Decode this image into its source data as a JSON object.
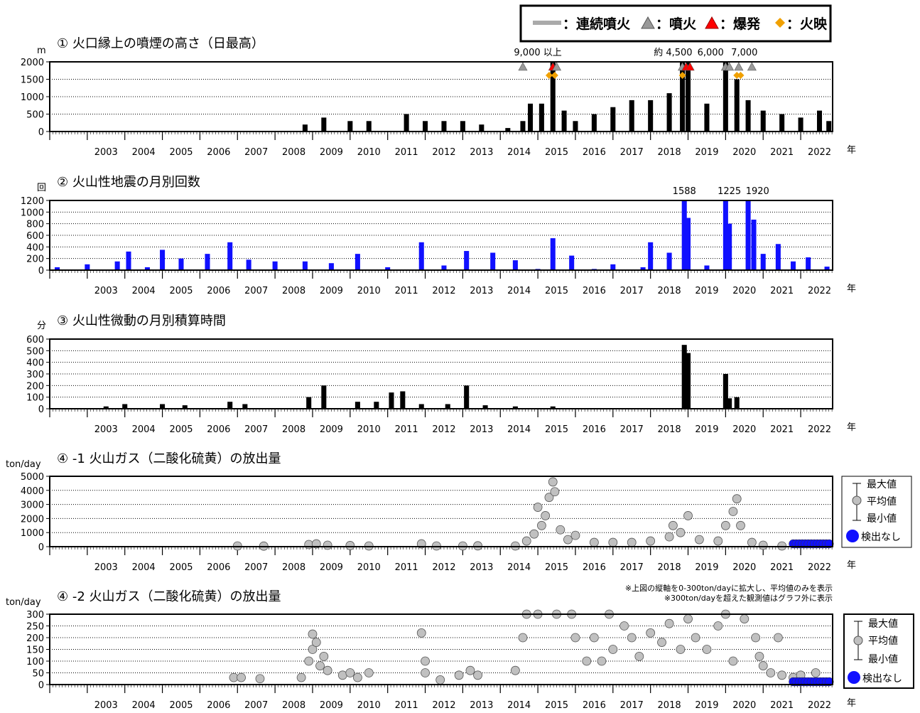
{
  "legend_top": {
    "continuous": "：連続噴火",
    "eruption": "：噴火",
    "explosion": "：爆発",
    "incandescence": "：火映",
    "colors": {
      "continuous": "#aaaaaa",
      "eruption": "#999999",
      "explosion": "#ff0000",
      "incandescence": "#f0a000"
    }
  },
  "year_suffix": "年",
  "side_legend": {
    "max": "最大値",
    "mean": "平均値",
    "min": "最小値",
    "none": "検出なし"
  },
  "note1": "※上図の縦軸を0-300ton/dayに拡大し、平均値のみを表示",
  "note2": "※300ton/dayを超えた観測値はグラフ外に表示",
  "chart_data": [
    {
      "id": "plume",
      "type": "bar",
      "title": "① 火口縁上の噴煙の高さ（日最高）",
      "unit": "m",
      "ylim": [
        0,
        2000
      ],
      "yticks": [
        "2000",
        "1500",
        "1000",
        "500",
        "0"
      ],
      "xticks": [
        "2003",
        "2004",
        "2005",
        "2006",
        "2007",
        "2008",
        "2009",
        "2010",
        "2011",
        "2012",
        "2013",
        "2014",
        "2015",
        "2016",
        "2017",
        "2018",
        "2019",
        "2020",
        "2021",
        "2022"
      ],
      "annotations": [
        "9,000 以上",
        "約 4,500",
        "6,000",
        "7,000"
      ],
      "color": "#000000",
      "series": [
        {
          "x": 2008.8,
          "y": 200
        },
        {
          "x": 2009.3,
          "y": 400
        },
        {
          "x": 2010.0,
          "y": 300
        },
        {
          "x": 2010.5,
          "y": 300
        },
        {
          "x": 2011.5,
          "y": 500
        },
        {
          "x": 2012.0,
          "y": 300
        },
        {
          "x": 2012.5,
          "y": 300
        },
        {
          "x": 2013.0,
          "y": 300
        },
        {
          "x": 2013.5,
          "y": 200
        },
        {
          "x": 2014.2,
          "y": 100
        },
        {
          "x": 2014.6,
          "y": 300
        },
        {
          "x": 2014.8,
          "y": 800
        },
        {
          "x": 2015.1,
          "y": 800
        },
        {
          "x": 2015.4,
          "y": 2000
        },
        {
          "x": 2015.7,
          "y": 600
        },
        {
          "x": 2016.0,
          "y": 300
        },
        {
          "x": 2016.5,
          "y": 500
        },
        {
          "x": 2017.0,
          "y": 700
        },
        {
          "x": 2017.5,
          "y": 900
        },
        {
          "x": 2018.0,
          "y": 900
        },
        {
          "x": 2018.5,
          "y": 1100
        },
        {
          "x": 2018.85,
          "y": 2000
        },
        {
          "x": 2019.0,
          "y": 2000
        },
        {
          "x": 2019.5,
          "y": 800
        },
        {
          "x": 2020.0,
          "y": 2000
        },
        {
          "x": 2020.3,
          "y": 1500
        },
        {
          "x": 2020.6,
          "y": 900
        },
        {
          "x": 2021.0,
          "y": 600
        },
        {
          "x": 2021.5,
          "y": 500
        },
        {
          "x": 2022.0,
          "y": 400
        },
        {
          "x": 2022.5,
          "y": 600
        },
        {
          "x": 2022.75,
          "y": 300
        }
      ]
    },
    {
      "id": "quake",
      "type": "bar",
      "title": "② 火山性地震の月別回数",
      "unit": "回",
      "ylim": [
        0,
        1200
      ],
      "yticks": [
        "1200",
        "1000",
        "800",
        "600",
        "400",
        "200",
        "0"
      ],
      "xticks": [
        "2003",
        "2004",
        "2005",
        "2006",
        "2007",
        "2008",
        "2009",
        "2010",
        "2011",
        "2012",
        "2013",
        "2014",
        "2015",
        "2016",
        "2017",
        "2018",
        "2019",
        "2020",
        "2021",
        "2022"
      ],
      "annotations": [
        "1588",
        "1225",
        "1920"
      ],
      "color": "#1010ff",
      "series": [
        {
          "x": 2002.2,
          "y": 50
        },
        {
          "x": 2003.0,
          "y": 100
        },
        {
          "x": 2003.8,
          "y": 150
        },
        {
          "x": 2004.1,
          "y": 320
        },
        {
          "x": 2004.6,
          "y": 50
        },
        {
          "x": 2005.0,
          "y": 350
        },
        {
          "x": 2005.5,
          "y": 200
        },
        {
          "x": 2006.2,
          "y": 280
        },
        {
          "x": 2006.8,
          "y": 480
        },
        {
          "x": 2007.3,
          "y": 180
        },
        {
          "x": 2008.0,
          "y": 150
        },
        {
          "x": 2008.8,
          "y": 150
        },
        {
          "x": 2009.5,
          "y": 120
        },
        {
          "x": 2010.2,
          "y": 280
        },
        {
          "x": 2011.0,
          "y": 50
        },
        {
          "x": 2011.9,
          "y": 480
        },
        {
          "x": 2012.5,
          "y": 80
        },
        {
          "x": 2013.1,
          "y": 330
        },
        {
          "x": 2013.8,
          "y": 300
        },
        {
          "x": 2014.4,
          "y": 170
        },
        {
          "x": 2015.0,
          "y": 20
        },
        {
          "x": 2015.4,
          "y": 550
        },
        {
          "x": 2015.9,
          "y": 250
        },
        {
          "x": 2016.5,
          "y": 20
        },
        {
          "x": 2017.0,
          "y": 100
        },
        {
          "x": 2017.8,
          "y": 50
        },
        {
          "x": 2018.0,
          "y": 480
        },
        {
          "x": 2018.5,
          "y": 300
        },
        {
          "x": 2018.9,
          "y": 1200
        },
        {
          "x": 2019.0,
          "y": 900
        },
        {
          "x": 2019.5,
          "y": 80
        },
        {
          "x": 2020.0,
          "y": 1200
        },
        {
          "x": 2020.1,
          "y": 800
        },
        {
          "x": 2020.6,
          "y": 1200
        },
        {
          "x": 2020.75,
          "y": 870
        },
        {
          "x": 2021.0,
          "y": 280
        },
        {
          "x": 2021.4,
          "y": 450
        },
        {
          "x": 2021.8,
          "y": 150
        },
        {
          "x": 2022.2,
          "y": 220
        },
        {
          "x": 2022.7,
          "y": 60
        }
      ]
    },
    {
      "id": "tremor",
      "type": "bar",
      "title": "③ 火山性微動の月別積算時間",
      "unit": "分",
      "ylim": [
        0,
        600
      ],
      "yticks": [
        "600",
        "500",
        "400",
        "300",
        "200",
        "100",
        "0"
      ],
      "xticks": [
        "2003",
        "2004",
        "2005",
        "2006",
        "2007",
        "2008",
        "2009",
        "2010",
        "2011",
        "2012",
        "2013",
        "2014",
        "2015",
        "2016",
        "2017",
        "2018",
        "2019",
        "2020",
        "2021",
        "2022"
      ],
      "color": "#000000",
      "series": [
        {
          "x": 2003.5,
          "y": 20
        },
        {
          "x": 2004.0,
          "y": 40
        },
        {
          "x": 2005.0,
          "y": 40
        },
        {
          "x": 2005.6,
          "y": 30
        },
        {
          "x": 2006.8,
          "y": 60
        },
        {
          "x": 2007.2,
          "y": 40
        },
        {
          "x": 2008.9,
          "y": 100
        },
        {
          "x": 2009.3,
          "y": 200
        },
        {
          "x": 2010.2,
          "y": 60
        },
        {
          "x": 2010.7,
          "y": 60
        },
        {
          "x": 2011.1,
          "y": 140
        },
        {
          "x": 2011.4,
          "y": 150
        },
        {
          "x": 2011.9,
          "y": 40
        },
        {
          "x": 2012.6,
          "y": 40
        },
        {
          "x": 2013.1,
          "y": 200
        },
        {
          "x": 2013.6,
          "y": 30
        },
        {
          "x": 2014.4,
          "y": 20
        },
        {
          "x": 2015.4,
          "y": 20
        },
        {
          "x": 2018.9,
          "y": 550
        },
        {
          "x": 2019.0,
          "y": 480
        },
        {
          "x": 2020.0,
          "y": 300
        },
        {
          "x": 2020.1,
          "y": 90
        },
        {
          "x": 2020.3,
          "y": 100
        }
      ]
    },
    {
      "id": "gas1",
      "type": "scatter",
      "title": "④ -1 火山ガス（二酸化硫黄）の放出量",
      "unit": "ton/day",
      "ylim": [
        0,
        5000
      ],
      "yticks": [
        "5000",
        "4000",
        "3000",
        "2000",
        "1000",
        "0"
      ],
      "xticks": [
        "2003",
        "2004",
        "2005",
        "2006",
        "2007",
        "2008",
        "2009",
        "2010",
        "2011",
        "2012",
        "2013",
        "2014",
        "2015",
        "2016",
        "2017",
        "2018",
        "2019",
        "2020",
        "2021",
        "2022"
      ],
      "point_color": "#c0c0c0",
      "none_color": "#1010ff",
      "series": [
        {
          "x": 2007.0,
          "y": 50
        },
        {
          "x": 2007.7,
          "y": 40
        },
        {
          "x": 2008.9,
          "y": 150
        },
        {
          "x": 2009.1,
          "y": 200
        },
        {
          "x": 2009.4,
          "y": 100
        },
        {
          "x": 2010.0,
          "y": 80
        },
        {
          "x": 2010.5,
          "y": 50
        },
        {
          "x": 2011.9,
          "y": 200
        },
        {
          "x": 2012.3,
          "y": 50
        },
        {
          "x": 2013.0,
          "y": 50
        },
        {
          "x": 2013.4,
          "y": 60
        },
        {
          "x": 2014.4,
          "y": 50
        },
        {
          "x": 2014.7,
          "y": 400
        },
        {
          "x": 2014.9,
          "y": 900
        },
        {
          "x": 2015.0,
          "y": 2800
        },
        {
          "x": 2015.1,
          "y": 1500
        },
        {
          "x": 2015.2,
          "y": 2200
        },
        {
          "x": 2015.3,
          "y": 3500
        },
        {
          "x": 2015.4,
          "y": 4600
        },
        {
          "x": 2015.45,
          "y": 3900
        },
        {
          "x": 2015.6,
          "y": 1200
        },
        {
          "x": 2015.8,
          "y": 500
        },
        {
          "x": 2016.0,
          "y": 800
        },
        {
          "x": 2016.5,
          "y": 300
        },
        {
          "x": 2017.0,
          "y": 300
        },
        {
          "x": 2017.5,
          "y": 300
        },
        {
          "x": 2018.0,
          "y": 400
        },
        {
          "x": 2018.5,
          "y": 700
        },
        {
          "x": 2018.6,
          "y": 1500
        },
        {
          "x": 2018.8,
          "y": 1000
        },
        {
          "x": 2019.0,
          "y": 2200
        },
        {
          "x": 2019.3,
          "y": 500
        },
        {
          "x": 2019.8,
          "y": 400
        },
        {
          "x": 2020.0,
          "y": 1500
        },
        {
          "x": 2020.2,
          "y": 2500
        },
        {
          "x": 2020.3,
          "y": 3400
        },
        {
          "x": 2020.4,
          "y": 1500
        },
        {
          "x": 2020.7,
          "y": 300
        },
        {
          "x": 2021.0,
          "y": 100
        },
        {
          "x": 2021.5,
          "y": 50
        }
      ],
      "none_range": [
        2021.8,
        2022.8
      ]
    },
    {
      "id": "gas2",
      "type": "scatter",
      "title": "④ -2 火山ガス（二酸化硫黄）の放出量",
      "unit": "ton/day",
      "ylim": [
        0,
        300
      ],
      "yticks": [
        "300",
        "250",
        "200",
        "150",
        "100",
        "50",
        "0"
      ],
      "xticks": [
        "2003",
        "2004",
        "2005",
        "2006",
        "2007",
        "2008",
        "2009",
        "2010",
        "2011",
        "2012",
        "2013",
        "2014",
        "2015",
        "2016",
        "2017",
        "2018",
        "2019",
        "2020",
        "2021",
        "2022"
      ],
      "point_color": "#c0c0c0",
      "none_color": "#1010ff",
      "series": [
        {
          "x": 2006.9,
          "y": 30
        },
        {
          "x": 2007.1,
          "y": 30
        },
        {
          "x": 2007.6,
          "y": 25
        },
        {
          "x": 2008.7,
          "y": 30
        },
        {
          "x": 2008.9,
          "y": 100
        },
        {
          "x": 2009.0,
          "y": 150
        },
        {
          "x": 2009.0,
          "y": 215
        },
        {
          "x": 2009.1,
          "y": 180
        },
        {
          "x": 2009.2,
          "y": 80
        },
        {
          "x": 2009.3,
          "y": 120
        },
        {
          "x": 2009.4,
          "y": 60
        },
        {
          "x": 2009.8,
          "y": 40
        },
        {
          "x": 2010.0,
          "y": 50
        },
        {
          "x": 2010.2,
          "y": 30
        },
        {
          "x": 2010.5,
          "y": 50
        },
        {
          "x": 2011.9,
          "y": 220
        },
        {
          "x": 2012.0,
          "y": 100
        },
        {
          "x": 2012.0,
          "y": 50
        },
        {
          "x": 2012.4,
          "y": 20
        },
        {
          "x": 2012.9,
          "y": 40
        },
        {
          "x": 2013.2,
          "y": 60
        },
        {
          "x": 2013.4,
          "y": 40
        },
        {
          "x": 2014.4,
          "y": 60
        },
        {
          "x": 2014.6,
          "y": 200
        },
        {
          "x": 2014.7,
          "y": 300
        },
        {
          "x": 2015.0,
          "y": 300
        },
        {
          "x": 2015.5,
          "y": 300
        },
        {
          "x": 2015.9,
          "y": 300
        },
        {
          "x": 2016.0,
          "y": 200
        },
        {
          "x": 2016.3,
          "y": 100
        },
        {
          "x": 2016.5,
          "y": 200
        },
        {
          "x": 2016.7,
          "y": 100
        },
        {
          "x": 2016.9,
          "y": 300
        },
        {
          "x": 2017.0,
          "y": 150
        },
        {
          "x": 2017.3,
          "y": 250
        },
        {
          "x": 2017.5,
          "y": 200
        },
        {
          "x": 2017.7,
          "y": 120
        },
        {
          "x": 2018.0,
          "y": 220
        },
        {
          "x": 2018.3,
          "y": 180
        },
        {
          "x": 2018.5,
          "y": 260
        },
        {
          "x": 2018.8,
          "y": 150
        },
        {
          "x": 2019.0,
          "y": 280
        },
        {
          "x": 2019.2,
          "y": 200
        },
        {
          "x": 2019.5,
          "y": 150
        },
        {
          "x": 2019.8,
          "y": 250
        },
        {
          "x": 2020.0,
          "y": 300
        },
        {
          "x": 2020.2,
          "y": 100
        },
        {
          "x": 2020.5,
          "y": 280
        },
        {
          "x": 2020.8,
          "y": 200
        },
        {
          "x": 2020.9,
          "y": 120
        },
        {
          "x": 2021.0,
          "y": 80
        },
        {
          "x": 2021.2,
          "y": 50
        },
        {
          "x": 2021.4,
          "y": 200
        },
        {
          "x": 2021.5,
          "y": 40
        },
        {
          "x": 2021.8,
          "y": 30
        },
        {
          "x": 2022.0,
          "y": 40
        },
        {
          "x": 2022.4,
          "y": 50
        }
      ],
      "none_range": [
        2021.8,
        2022.8
      ]
    }
  ]
}
